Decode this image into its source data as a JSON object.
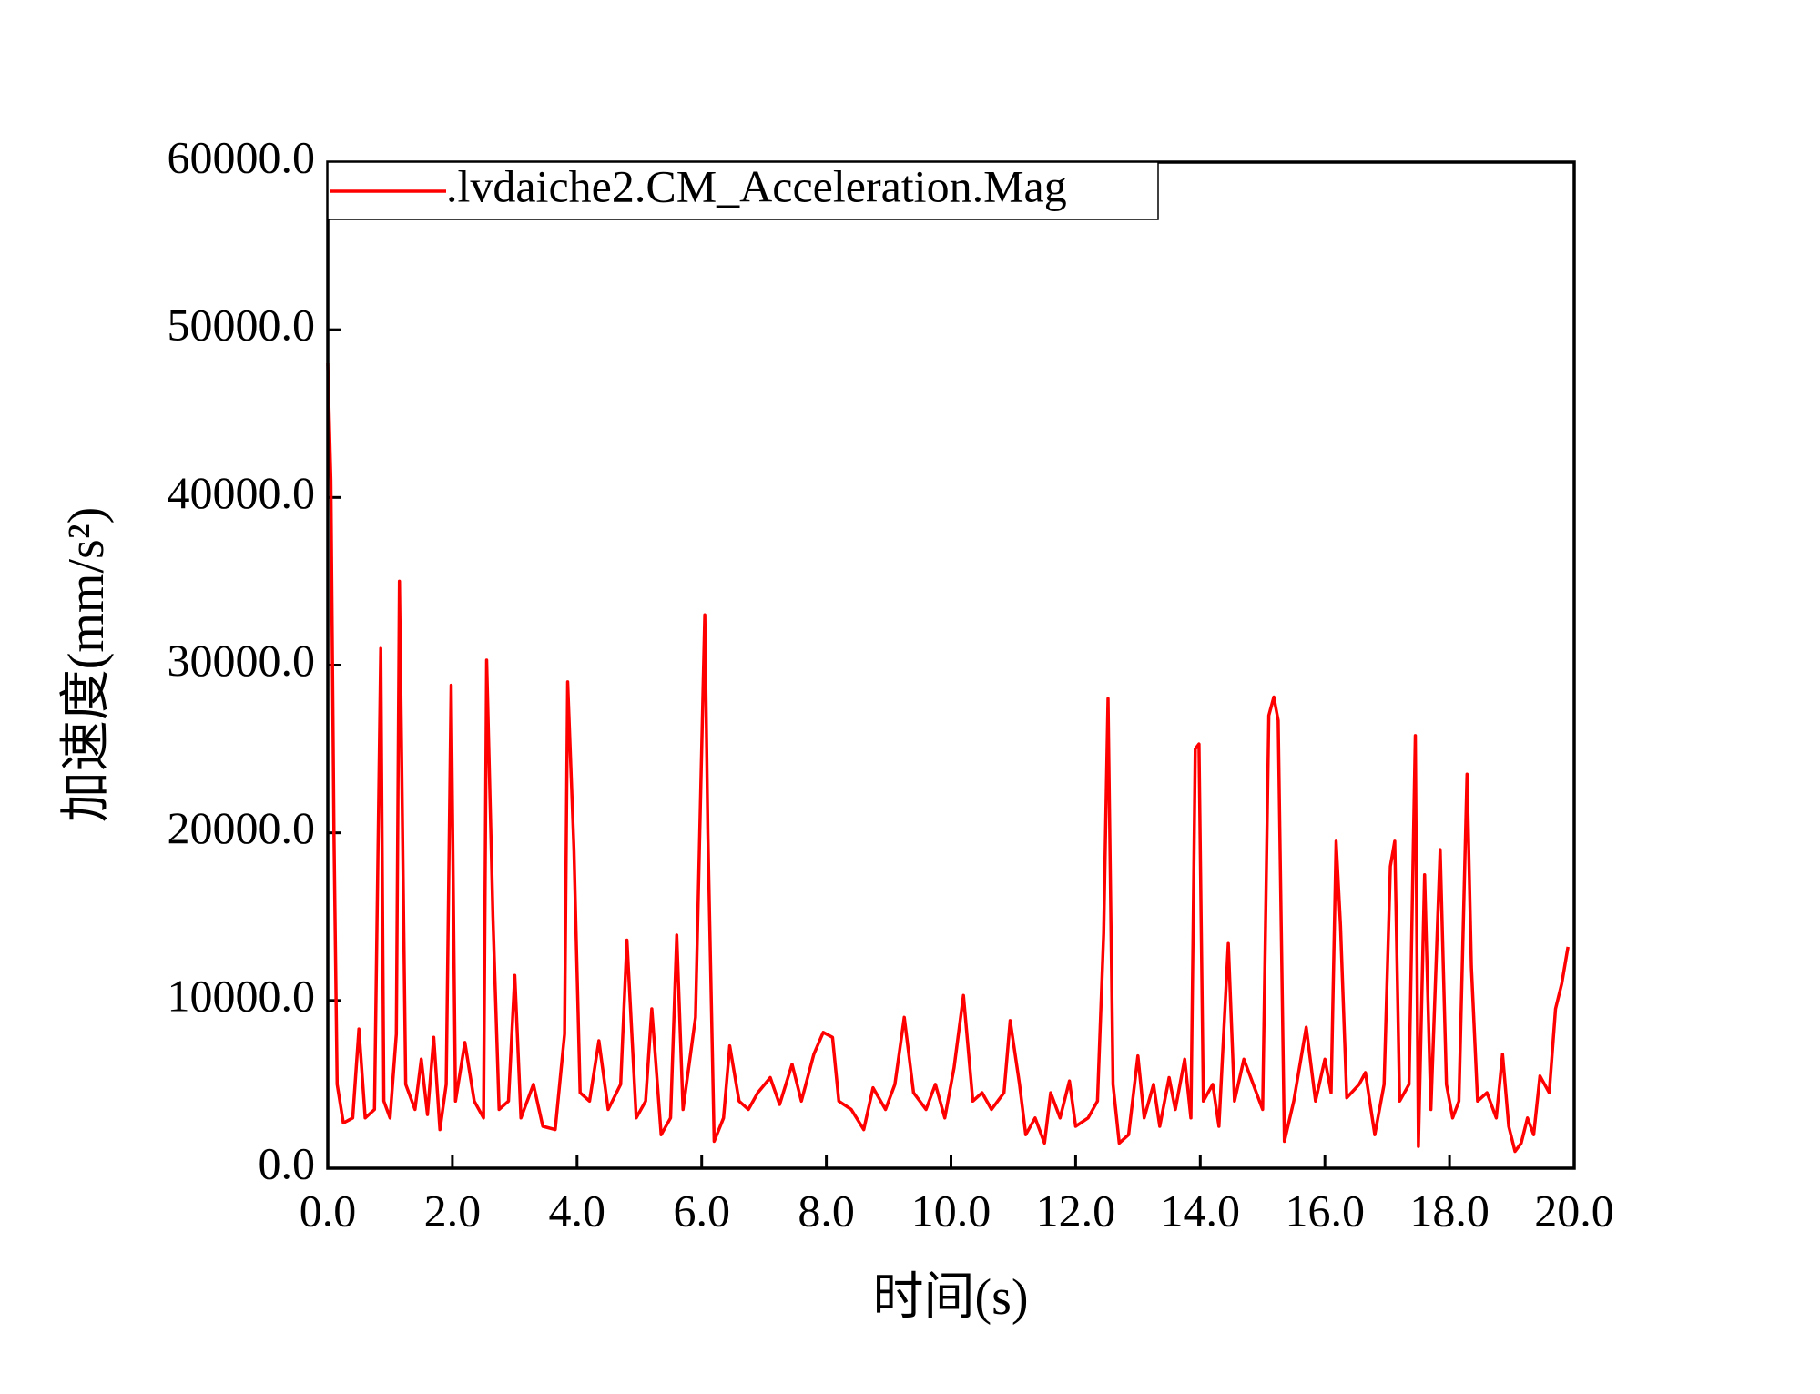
{
  "chart_data": {
    "type": "line",
    "xlabel": "时间(s)",
    "ylabel": "加速度(mm/s²)",
    "xlim": [
      0,
      20
    ],
    "ylim": [
      0,
      60000
    ],
    "xticks": [
      {
        "value": 0,
        "label": "0.0"
      },
      {
        "value": 2,
        "label": "2.0"
      },
      {
        "value": 4,
        "label": "4.0"
      },
      {
        "value": 6,
        "label": "6.0"
      },
      {
        "value": 8,
        "label": "8.0"
      },
      {
        "value": 10,
        "label": "10.0"
      },
      {
        "value": 12,
        "label": "12.0"
      },
      {
        "value": 14,
        "label": "14.0"
      },
      {
        "value": 16,
        "label": "16.0"
      },
      {
        "value": 18,
        "label": "18.0"
      },
      {
        "value": 20,
        "label": "20.0"
      }
    ],
    "yticks": [
      {
        "value": 0,
        "label": "0.0"
      },
      {
        "value": 10000,
        "label": "10000.0"
      },
      {
        "value": 20000,
        "label": "20000.0"
      },
      {
        "value": 30000,
        "label": "30000.0"
      },
      {
        "value": 40000,
        "label": "40000.0"
      },
      {
        "value": 50000,
        "label": "50000.0"
      },
      {
        "value": 60000,
        "label": "60000.0"
      }
    ],
    "legend": "top-left",
    "x": [
      0.0,
      0.05,
      0.1,
      0.15,
      0.25,
      0.4,
      0.5,
      0.6,
      0.75,
      0.85,
      0.9,
      1.0,
      1.1,
      1.15,
      1.25,
      1.4,
      1.5,
      1.6,
      1.7,
      1.8,
      1.9,
      1.98,
      2.05,
      2.2,
      2.35,
      2.5,
      2.55,
      2.65,
      2.75,
      2.9,
      3.0,
      3.1,
      3.3,
      3.45,
      3.65,
      3.8,
      3.85,
      3.95,
      4.05,
      4.2,
      4.35,
      4.5,
      4.7,
      4.8,
      4.95,
      5.1,
      5.2,
      5.35,
      5.5,
      5.6,
      5.7,
      5.9,
      6.05,
      6.1,
      6.2,
      6.35,
      6.45,
      6.6,
      6.75,
      6.9,
      7.1,
      7.25,
      7.45,
      7.6,
      7.8,
      7.95,
      8.1,
      8.2,
      8.4,
      8.6,
      8.75,
      8.95,
      9.1,
      9.25,
      9.4,
      9.6,
      9.75,
      9.9,
      10.05,
      10.2,
      10.35,
      10.5,
      10.65,
      10.85,
      10.95,
      11.1,
      11.2,
      11.35,
      11.5,
      11.6,
      11.75,
      11.9,
      12.0,
      12.2,
      12.35,
      12.45,
      12.52,
      12.6,
      12.7,
      12.85,
      13.0,
      13.1,
      13.25,
      13.35,
      13.5,
      13.6,
      13.75,
      13.85,
      13.92,
      13.98,
      14.05,
      14.2,
      14.3,
      14.45,
      14.55,
      14.7,
      14.85,
      15.0,
      15.1,
      15.18,
      15.25,
      15.35,
      15.5,
      15.7,
      15.85,
      16.0,
      16.1,
      16.18,
      16.25,
      16.35,
      16.55,
      16.65,
      16.8,
      16.95,
      17.05,
      17.12,
      17.2,
      17.35,
      17.45,
      17.5,
      17.6,
      17.7,
      17.85,
      17.95,
      18.05,
      18.15,
      18.28,
      18.35,
      18.45,
      18.6,
      18.75,
      18.85,
      18.95,
      19.05,
      19.15,
      19.25,
      19.35,
      19.45,
      19.6,
      19.7,
      19.8,
      19.9
    ],
    "series": [
      {
        "name": ".lvdaiche2.CM_Acceleration.Mag",
        "color": "#ff0000",
        "values": [
          48000,
          41000,
          20000,
          5000,
          2700,
          3000,
          8300,
          3000,
          3500,
          31000,
          4000,
          3000,
          8000,
          35000,
          5000,
          3500,
          6500,
          3200,
          7800,
          2300,
          5000,
          28800,
          4000,
          7500,
          4000,
          3000,
          30300,
          15000,
          3500,
          4000,
          11500,
          3000,
          5000,
          2500,
          2300,
          8000,
          29000,
          19000,
          4500,
          4000,
          7600,
          3500,
          5000,
          13600,
          3000,
          4000,
          9500,
          2000,
          3000,
          13900,
          3500,
          9000,
          33000,
          20000,
          1600,
          3000,
          7300,
          4000,
          3500,
          4500,
          5400,
          3800,
          6200,
          4000,
          6800,
          8100,
          7800,
          4000,
          3500,
          2300,
          4800,
          3500,
          5000,
          9000,
          4500,
          3500,
          5000,
          3000,
          6000,
          10300,
          4000,
          4500,
          3500,
          4500,
          8800,
          5000,
          2000,
          3000,
          1500,
          4500,
          3000,
          5200,
          2500,
          3000,
          4000,
          14000,
          28000,
          5000,
          1500,
          2000,
          6700,
          3000,
          5000,
          2500,
          5400,
          3500,
          6500,
          3000,
          25000,
          25300,
          4000,
          5000,
          2500,
          13400,
          4000,
          6500,
          5000,
          3500,
          27000,
          28100,
          26700,
          1600,
          4000,
          8400,
          4000,
          6500,
          4500,
          19500,
          14500,
          4200,
          5000,
          5700,
          2000,
          5000,
          18000,
          19500,
          4000,
          5000,
          25800,
          1300,
          17500,
          3500,
          19000,
          5000,
          3000,
          4000,
          23500,
          12000,
          4000,
          4500,
          3000,
          6800,
          2500,
          1000,
          1500,
          3000,
          2000,
          5500,
          4500,
          9500,
          11000,
          13200
        ]
      }
    ]
  }
}
